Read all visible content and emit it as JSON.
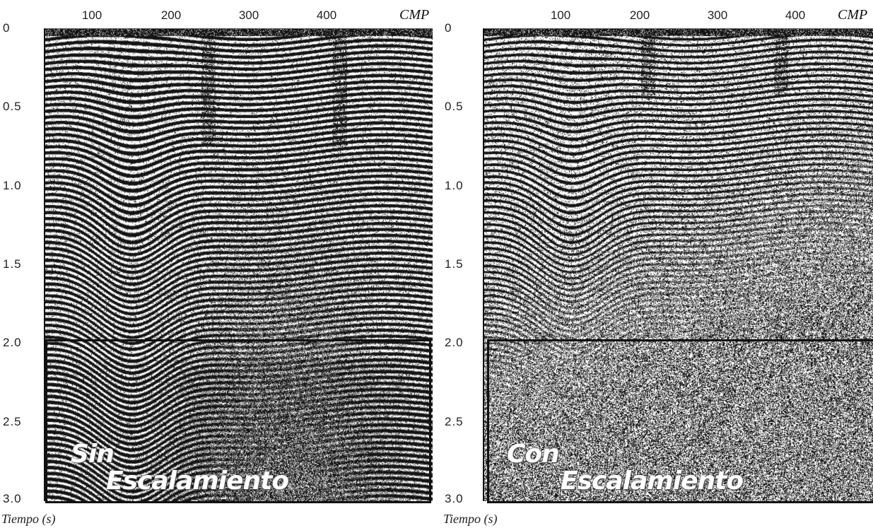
{
  "left_panel": {
    "x_ticks": [
      "100",
      "200",
      "300",
      "400"
    ],
    "x_label": "CMP",
    "y_ticks": [
      "0",
      "0.5",
      "1.0",
      "1.5",
      "2.0",
      "2.5",
      "3.0"
    ],
    "y_label": "Tiempo (s)",
    "overlay_line1": "Sin",
    "overlay_line2": "Escalamiento"
  },
  "right_panel": {
    "x_ticks": [
      "100",
      "200",
      "300",
      "400"
    ],
    "x_label": "CMP",
    "y_ticks": [
      "0",
      "0.5",
      "1.0",
      "1.5",
      "2.0",
      "2.5",
      "3.0"
    ],
    "y_label": "Tiempo (s)",
    "overlay_line1": "Con",
    "overlay_line2": "Escalamiento"
  }
}
